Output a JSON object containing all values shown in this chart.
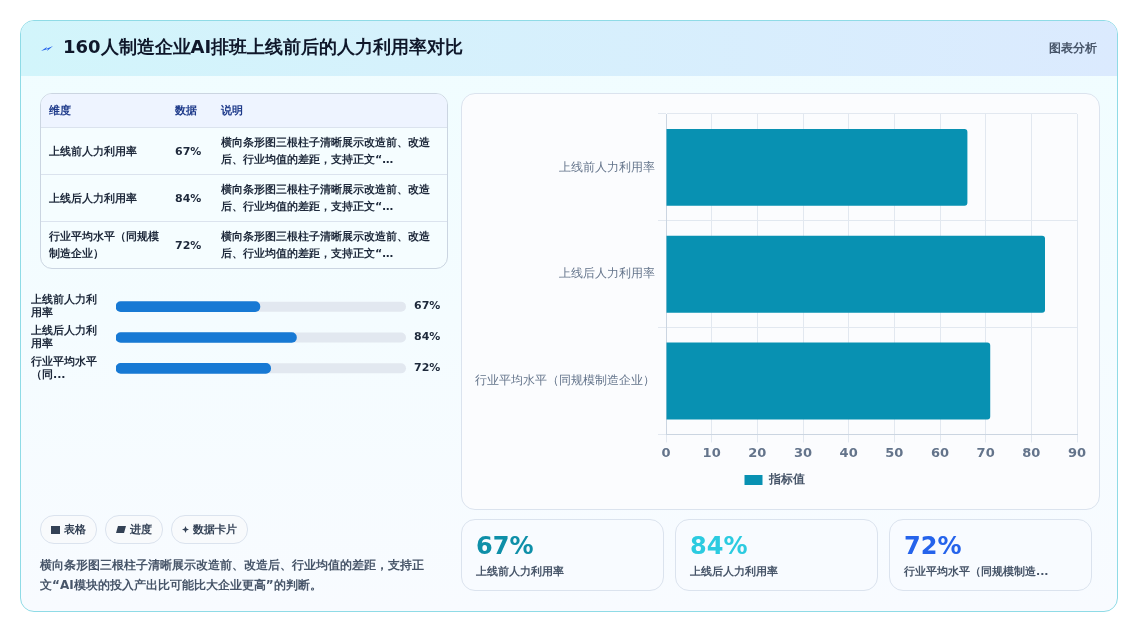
{
  "chart_data": [
    {
      "type": "other",
      "title": "160人制造企业AI排班上线前后的人力利用率对比",
      "subtitle": "图表分析",
      "categories": [
        "上线前人力利用率",
        "上线后人力利用率",
        "行业平均水平（同规模制造企业）"
      ],
      "value_labels": [
        "67%",
        "84%",
        "72%"
      ],
      "annotations": [
        "维度",
        "数据",
        "说明",
        "横向条形图三根柱子清晰展示改造前、改造后、行业均值的差距，支持正文“…",
        "横向条形图三根柱子清晰展示改造前、改造后、行业均值的差距，支持正文“…",
        "横向条形图三根柱子清晰展示改造前、改造后、行业均值的差距，支持正文“…"
      ]
    },
    {
      "type": "bar",
      "orientation": "horizontal",
      "categories": [
        "上线前人力利用率",
        "上线后人力利用率",
        "行业平均水平（同..."
      ],
      "values": [
        67,
        84,
        72
      ],
      "value_labels": [
        "67%",
        "84%",
        "72%"
      ],
      "color": "#1779d4",
      "xlim": [
        0,
        135
      ],
      "tick_labels": "y",
      "grid": false,
      "legend": false,
      "annotations": [
        "表格",
        "进度",
        "数据卡片",
        "横向条形图三根柱子清晰展示改造前、改造后、行业均值的差距，支持正文“AI模块的投入产出比可能比大企业更高”的判断。"
      ]
    },
    {
      "type": "bar",
      "orientation": "horizontal",
      "categories": [
        "上线前人力利用率",
        "上线后人力利用率",
        "行业平均水平（同规模制造企业）"
      ],
      "series": [
        {
          "name": "指标值",
          "color": "#0891b2",
          "values": [
            66,
            83,
            71
          ]
        }
      ],
      "xlim": [
        0,
        90
      ],
      "xticks": [
        0,
        10,
        20,
        30,
        40,
        50,
        60,
        70,
        80,
        90
      ],
      "grid": true,
      "legend": "bottom"
    },
    {
      "type": "other",
      "categories": [
        "上线前人力利用率",
        "上线后人力利用率",
        "行业平均水平（同规模制造..."
      ],
      "value_labels": [
        "67%",
        "84%",
        "72%"
      ]
    }
  ]
}
